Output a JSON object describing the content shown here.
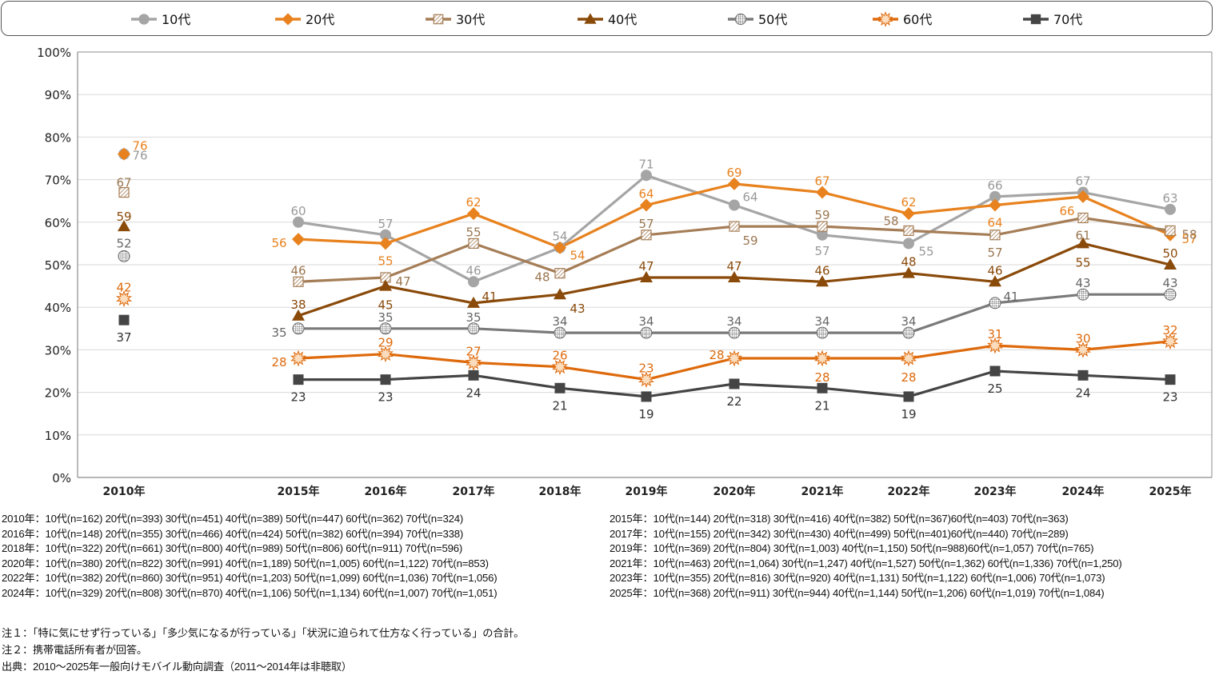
{
  "chart_data": {
    "type": "line",
    "title": "",
    "xlabel": "",
    "ylabel": "",
    "ylim": [
      0,
      100
    ],
    "yticks": [
      "0%",
      "10%",
      "20%",
      "30%",
      "40%",
      "50%",
      "60%",
      "70%",
      "80%",
      "90%",
      "100%"
    ],
    "ytick_values": [
      0,
      10,
      20,
      30,
      40,
      50,
      60,
      70,
      80,
      90,
      100
    ],
    "grid": true,
    "legend_position": "top",
    "categories": [
      "2010年",
      "2015年",
      "2016年",
      "2017年",
      "2018年",
      "2019年",
      "2020年",
      "2021年",
      "2022年",
      "2023年",
      "2024年",
      "2025年"
    ],
    "note": "2010年 is plotted as isolated points (no line connecting to 2015年); 2011〜2014年 not surveyed",
    "series": [
      {
        "name": "10代",
        "color": "#a5a5a5",
        "marker": "circle",
        "label_color": "#999999",
        "values": [
          76,
          60,
          57,
          46,
          54,
          71,
          64,
          57,
          55,
          66,
          67,
          63
        ]
      },
      {
        "name": "20代",
        "color": "#e8821e",
        "marker": "diamond",
        "label_color": "#e8821e",
        "values": [
          76,
          56,
          55,
          62,
          54,
          64,
          69,
          67,
          62,
          64,
          66,
          57
        ]
      },
      {
        "name": "30代",
        "color": "#a57d56",
        "marker": "hatched-square",
        "label_color": "#9a7650",
        "values": [
          67,
          46,
          47,
          55,
          48,
          57,
          59,
          59,
          58,
          57,
          61,
          58
        ]
      },
      {
        "name": "40代",
        "color": "#8a4a0a",
        "marker": "triangle",
        "label_color": "#8a4a0a",
        "values": [
          59,
          38,
          45,
          41,
          43,
          47,
          47,
          46,
          48,
          46,
          55,
          50
        ]
      },
      {
        "name": "50代",
        "color": "#7a7a7a",
        "marker": "grid-circle",
        "label_color": "#666666",
        "values": [
          52,
          35,
          35,
          35,
          34,
          34,
          34,
          34,
          34,
          41,
          43,
          43
        ]
      },
      {
        "name": "60代",
        "color": "#de6a0c",
        "marker": "starburst",
        "label_color": "#de6a0c",
        "values": [
          42,
          28,
          29,
          27,
          26,
          23,
          28,
          28,
          28,
          31,
          30,
          32
        ]
      },
      {
        "name": "70代",
        "color": "#454545",
        "marker": "square",
        "label_color": "#333333",
        "values": [
          37,
          23,
          23,
          24,
          21,
          19,
          22,
          21,
          19,
          25,
          24,
          23
        ]
      }
    ]
  },
  "samples_left": [
    "2010年：10代(n=162) 20代(n=393) 30代(n=451) 40代(n=389) 50代(n=447) 60代(n=362) 70代(n=324)",
    "2016年：10代(n=148) 20代(n=355) 30代(n=466) 40代(n=424) 50代(n=382) 60代(n=394) 70代(n=338)",
    "2018年：10代(n=322) 20代(n=661) 30代(n=800) 40代(n=989) 50代(n=806) 60代(n=911) 70代(n=596)",
    "2020年：10代(n=380) 20代(n=822) 30代(n=991) 40代(n=1,189) 50代(n=1,005) 60代(n=1,122) 70代(n=853)",
    "2022年：10代(n=382) 20代(n=860) 30代(n=951) 40代(n=1,203) 50代(n=1,099) 60代(n=1,036) 70代(n=1,056)",
    "2024年：10代(n=329) 20代(n=808) 30代(n=870) 40代(n=1,106) 50代(n=1,134) 60代(n=1,007) 70代(n=1,051)"
  ],
  "samples_right": [
    "2015年：10代(n=144) 20代(n=318) 30代(n=416) 40代(n=382) 50代(n=367)60代(n=403) 70代(n=363)",
    "2017年：10代(n=155) 20代(n=342) 30代(n=430) 40代(n=499) 50代(n=401)60代(n=440) 70代(n=289)",
    "2019年：10代(n=369) 20代(n=804) 30代(n=1,003) 40代(n=1,150) 50代(n=988)60代(n=1,057) 70代(n=765)",
    "2021年：10代(n=463) 20代(n=1,064) 30代(n=1,247) 40代(n=1,527) 50代(n=1,362) 60代(n=1,336) 70代(n=1,250)",
    "2023年：10代(n=355) 20代(n=816) 30代(n=920) 40代(n=1,131) 50代(n=1,122) 60代(n=1,006) 70代(n=1,073)",
    "2025年：10代(n=368) 20代(n=911) 30代(n=944) 40代(n=1,144) 50代(n=1,206) 60代(n=1,019) 70代(n=1,084)"
  ],
  "footnotes": {
    "note1": "注１：「特に気にせず行っている」「多少気になるが行っている」「状況に迫られて仕方なく行っている」の合計。",
    "note2": "注２：携帯電話所有者が回答。",
    "source": "出典：2010〜2025年一般向けモバイル動向調査（2011〜2014年は非聴取）"
  }
}
